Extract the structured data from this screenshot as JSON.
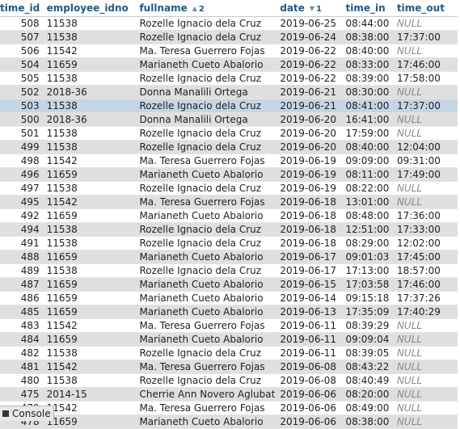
{
  "columns": [
    {
      "label": "time_id",
      "arrow": "",
      "order": ""
    },
    {
      "label": "employee_idno",
      "arrow": "",
      "order": ""
    },
    {
      "label": "fullname",
      "arrow": "▲",
      "order": "2"
    },
    {
      "label": "date",
      "arrow": "▼",
      "order": "1"
    },
    {
      "label": "time_in",
      "arrow": "",
      "order": ""
    },
    {
      "label": "time_out",
      "arrow": "",
      "order": ""
    }
  ],
  "rows": [
    [
      "508",
      "11538",
      "Rozelle Ignacio dela Cruz",
      "2019-06-25",
      "08:44:00",
      "NULL"
    ],
    [
      "507",
      "11538",
      "Rozelle Ignacio dela Cruz",
      "2019-06-24",
      "08:38:00",
      "17:37:00"
    ],
    [
      "506",
      "11542",
      "Ma. Teresa Guerrero Fojas",
      "2019-06-22",
      "08:40:00",
      "NULL"
    ],
    [
      "504",
      "11659",
      "Marianeth Cueto Abalorio",
      "2019-06-22",
      "08:33:00",
      "17:46:00"
    ],
    [
      "505",
      "11538",
      "Rozelle Ignacio dela Cruz",
      "2019-06-22",
      "08:39:00",
      "17:58:00"
    ],
    [
      "502",
      "2018-36",
      "Donna Manalili Ortega",
      "2019-06-21",
      "08:30:00",
      "NULL"
    ],
    [
      "503",
      "11538",
      "Rozelle Ignacio dela Cruz",
      "2019-06-21",
      "08:41:00",
      "17:37:00"
    ],
    [
      "500",
      "2018-36",
      "Donna Manalili Ortega",
      "2019-06-20",
      "16:41:00",
      "NULL"
    ],
    [
      "501",
      "11538",
      "Rozelle Ignacio dela Cruz",
      "2019-06-20",
      "17:59:00",
      "NULL"
    ],
    [
      "499",
      "11538",
      "Rozelle Ignacio dela Cruz",
      "2019-06-20",
      "08:40:00",
      "12:04:00"
    ],
    [
      "498",
      "11542",
      "Ma. Teresa Guerrero Fojas",
      "2019-06-19",
      "09:09:00",
      "09:31:00"
    ],
    [
      "496",
      "11659",
      "Marianeth Cueto Abalorio",
      "2019-06-19",
      "08:11:00",
      "17:49:00"
    ],
    [
      "497",
      "11538",
      "Rozelle Ignacio dela Cruz",
      "2019-06-19",
      "08:22:00",
      "NULL"
    ],
    [
      "495",
      "11542",
      "Ma. Teresa Guerrero Fojas",
      "2019-06-18",
      "13:01:00",
      "NULL"
    ],
    [
      "492",
      "11659",
      "Marianeth Cueto Abalorio",
      "2019-06-18",
      "08:48:00",
      "17:36:00"
    ],
    [
      "494",
      "11538",
      "Rozelle Ignacio dela Cruz",
      "2019-06-18",
      "12:51:00",
      "17:33:00"
    ],
    [
      "491",
      "11538",
      "Rozelle Ignacio dela Cruz",
      "2019-06-18",
      "08:29:00",
      "12:02:00"
    ],
    [
      "488",
      "11659",
      "Marianeth Cueto Abalorio",
      "2019-06-17",
      "09:01:03",
      "17:45:00"
    ],
    [
      "489",
      "11538",
      "Rozelle Ignacio dela Cruz",
      "2019-06-17",
      "17:13:00",
      "18:57:00"
    ],
    [
      "487",
      "11659",
      "Marianeth Cueto Abalorio",
      "2019-06-15",
      "17:03:58",
      "17:46:00"
    ],
    [
      "486",
      "11659",
      "Marianeth Cueto Abalorio",
      "2019-06-14",
      "09:15:18",
      "17:37:26"
    ],
    [
      "485",
      "11659",
      "Marianeth Cueto Abalorio",
      "2019-06-13",
      "17:35:09",
      "17:40:29"
    ],
    [
      "483",
      "11542",
      "Ma. Teresa Guerrero Fojas",
      "2019-06-11",
      "08:39:29",
      "NULL"
    ],
    [
      "484",
      "11659",
      "Marianeth Cueto Abalorio",
      "2019-06-11",
      "09:09:04",
      "NULL"
    ],
    [
      "482",
      "11538",
      "Rozelle Ignacio dela Cruz",
      "2019-06-11",
      "08:39:05",
      "NULL"
    ],
    [
      "481",
      "11542",
      "Ma. Teresa Guerrero Fojas",
      "2019-06-08",
      "08:43:22",
      "NULL"
    ],
    [
      "480",
      "11538",
      "Rozelle Ignacio dela Cruz",
      "2019-06-08",
      "08:40:49",
      "NULL"
    ],
    [
      "475",
      "2014-15",
      "Cherrie Ann Novero Aglubat",
      "2019-06-06",
      "08:20:00",
      "NULL"
    ],
    [
      "479",
      "11542",
      "Ma. Teresa Guerrero Fojas",
      "2019-06-06",
      "08:49:00",
      "NULL"
    ],
    [
      "478",
      "11659",
      "Marianeth Cueto Abalorio",
      "2019-06-06",
      "08:38:00",
      "NULL"
    ]
  ],
  "marked_row_index": 6,
  "console_label": "Console",
  "colors": {
    "header_text": "#235a81",
    "row_even": "#dfdfdf",
    "row_marked": "#c5d5e4",
    "null_text": "#8a8a8a"
  }
}
